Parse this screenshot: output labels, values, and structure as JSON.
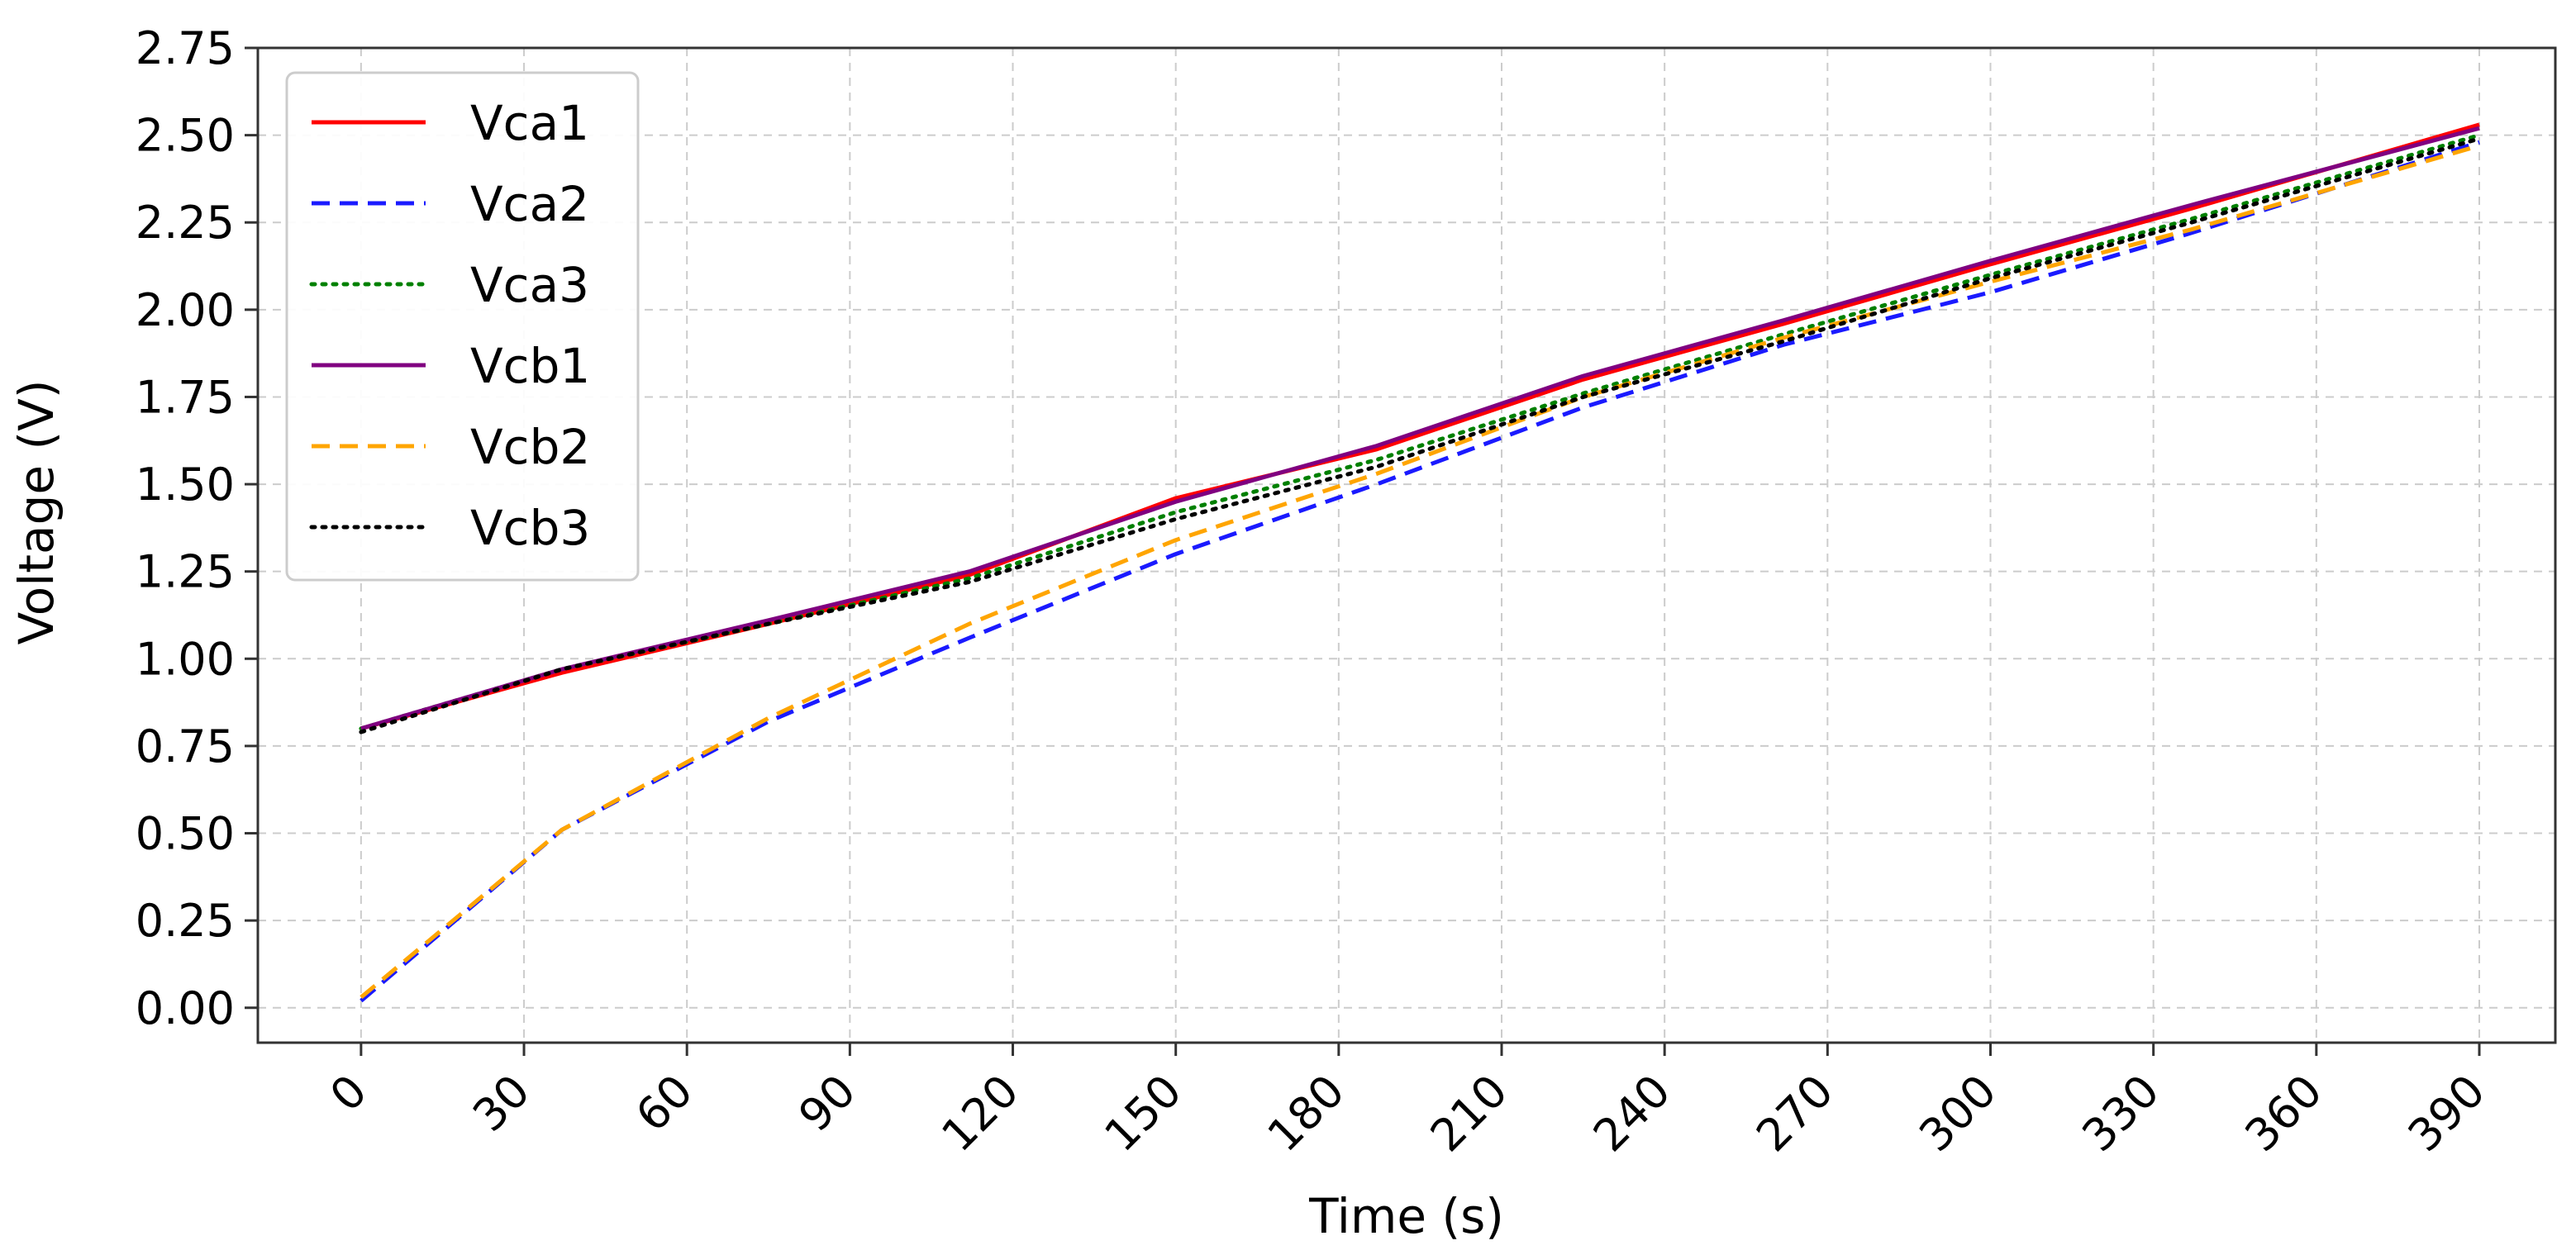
{
  "chart_data": {
    "type": "line",
    "title": "",
    "xlabel": "Time (s)",
    "ylabel": "Voltage (V)",
    "xlim": [
      -19,
      404
    ],
    "ylim": [
      -0.1,
      2.75
    ],
    "xticks": [
      0,
      30,
      60,
      90,
      120,
      150,
      180,
      210,
      240,
      270,
      300,
      330,
      360,
      390
    ],
    "yticks": [
      0.0,
      0.25,
      0.5,
      0.75,
      1.0,
      1.25,
      1.5,
      1.75,
      2.0,
      2.25,
      2.5,
      2.75
    ],
    "xtick_labels": [
      "0",
      "30",
      "60",
      "90",
      "120",
      "150",
      "180",
      "210",
      "240",
      "270",
      "300",
      "330",
      "360",
      "390"
    ],
    "ytick_labels": [
      "0.00",
      "0.25",
      "0.50",
      "0.75",
      "1.00",
      "1.25",
      "1.50",
      "1.75",
      "2.00",
      "2.25",
      "2.50",
      "2.75"
    ],
    "grid": true,
    "legend_position": "top-left",
    "x": [
      0,
      37,
      75,
      112,
      150,
      187,
      225,
      262,
      300,
      337,
      390
    ],
    "series": [
      {
        "name": "Vca1",
        "color": "#ff0000",
        "dash": "solid",
        "values": [
          0.8,
          0.96,
          1.1,
          1.24,
          1.46,
          1.6,
          1.8,
          1.96,
          2.13,
          2.29,
          2.53
        ]
      },
      {
        "name": "Vca2",
        "color": "#1a1aff",
        "dash": "dashed",
        "values": [
          0.02,
          0.51,
          0.82,
          1.06,
          1.3,
          1.5,
          1.72,
          1.9,
          2.05,
          2.22,
          2.48
        ]
      },
      {
        "name": "Vca3",
        "color": "#008000",
        "dash": "dotted",
        "values": [
          0.8,
          0.97,
          1.1,
          1.23,
          1.42,
          1.57,
          1.76,
          1.93,
          2.1,
          2.26,
          2.5
        ]
      },
      {
        "name": "Vcb1",
        "color": "#800080",
        "dash": "solid",
        "values": [
          0.8,
          0.97,
          1.11,
          1.25,
          1.45,
          1.61,
          1.81,
          1.97,
          2.14,
          2.3,
          2.52
        ]
      },
      {
        "name": "Vcb2",
        "color": "#ffa500",
        "dash": "dashed",
        "values": [
          0.03,
          0.51,
          0.83,
          1.1,
          1.34,
          1.53,
          1.75,
          1.92,
          2.08,
          2.23,
          2.47
        ]
      },
      {
        "name": "Vcb3",
        "color": "#000000",
        "dash": "dotted",
        "values": [
          0.79,
          0.97,
          1.1,
          1.22,
          1.4,
          1.55,
          1.75,
          1.91,
          2.09,
          2.25,
          2.49
        ]
      }
    ]
  }
}
